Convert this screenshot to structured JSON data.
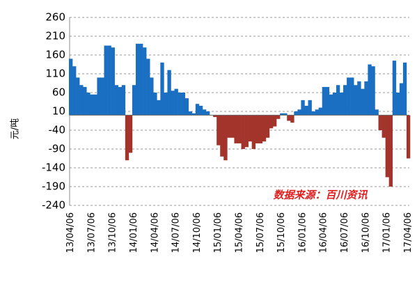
{
  "chart_data": {
    "type": "bar",
    "y_label": "元/吨",
    "annotation": "数据来源：百川资讯",
    "color_positive": "#1b6fc2",
    "color_negative": "#a3342c",
    "ylim": [
      -240,
      260
    ],
    "yticks": [
      -240,
      -190,
      -140,
      -90,
      -40,
      10,
      60,
      110,
      160,
      210,
      260
    ],
    "grid": true,
    "categories": [
      "13/04/06",
      null,
      null,
      null,
      null,
      null,
      "13/07/06",
      null,
      null,
      null,
      null,
      null,
      "13/10/06",
      null,
      null,
      null,
      null,
      null,
      "14/01/06",
      null,
      null,
      null,
      null,
      null,
      "14/04/06",
      null,
      null,
      null,
      null,
      null,
      "14/07/06",
      null,
      null,
      null,
      null,
      null,
      "14/10/06",
      null,
      null,
      null,
      null,
      null,
      "15/01/06",
      null,
      null,
      null,
      null,
      null,
      "15/04/06",
      null,
      null,
      null,
      null,
      null,
      "15/07/06",
      null,
      null,
      null,
      null,
      null,
      "15/10/06",
      null,
      null,
      null,
      null,
      null,
      "16/01/06",
      null,
      null,
      null,
      null,
      null,
      "16/04/06",
      null,
      null,
      null,
      null,
      null,
      "16/07/06",
      null,
      null,
      null,
      null,
      null,
      "16/10/06",
      null,
      null,
      null,
      null,
      null,
      "17/01/06",
      null,
      null,
      null,
      null,
      null,
      "17/04/06"
    ],
    "values": [
      150,
      130,
      100,
      80,
      75,
      60,
      55,
      55,
      100,
      100,
      185,
      185,
      180,
      80,
      75,
      80,
      -120,
      -100,
      80,
      190,
      190,
      180,
      150,
      100,
      60,
      40,
      140,
      60,
      120,
      65,
      70,
      60,
      60,
      45,
      10,
      5,
      30,
      25,
      15,
      10,
      0,
      -5,
      -80,
      -110,
      -120,
      -60,
      -60,
      -75,
      -75,
      -90,
      -85,
      -70,
      -90,
      -75,
      -75,
      -70,
      -60,
      -35,
      -30,
      -10,
      5,
      5,
      -15,
      -20,
      10,
      15,
      40,
      25,
      40,
      10,
      15,
      20,
      75,
      75,
      55,
      60,
      80,
      60,
      80,
      100,
      100,
      80,
      90,
      70,
      90,
      135,
      130,
      15,
      -40,
      -60,
      -165,
      -190,
      145,
      60,
      85,
      140,
      -115
    ]
  }
}
